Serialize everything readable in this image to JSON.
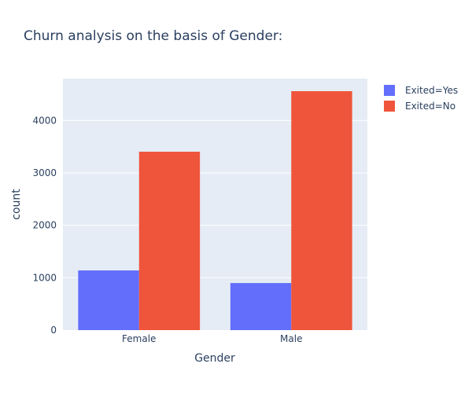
{
  "chart_data": {
    "type": "bar",
    "title": "Churn analysis on the basis of Gender:",
    "xlabel": "Gender",
    "ylabel": "count",
    "categories": [
      "Female",
      "Male"
    ],
    "series": [
      {
        "name": "Exited=Yes",
        "values": [
          1139,
          898
        ],
        "color": "#636efa"
      },
      {
        "name": "Exited=No",
        "values": [
          3404,
          4559
        ],
        "color": "#ef553b"
      }
    ],
    "ylim": [
      0,
      4799
    ],
    "yticks": [
      0,
      1000,
      2000,
      3000,
      4000
    ],
    "ytick_labels": [
      "0",
      "1000",
      "2000",
      "3000",
      "4000"
    ],
    "grid": true,
    "plot_background": "#e5ecf6",
    "legend_position": "top-right"
  }
}
